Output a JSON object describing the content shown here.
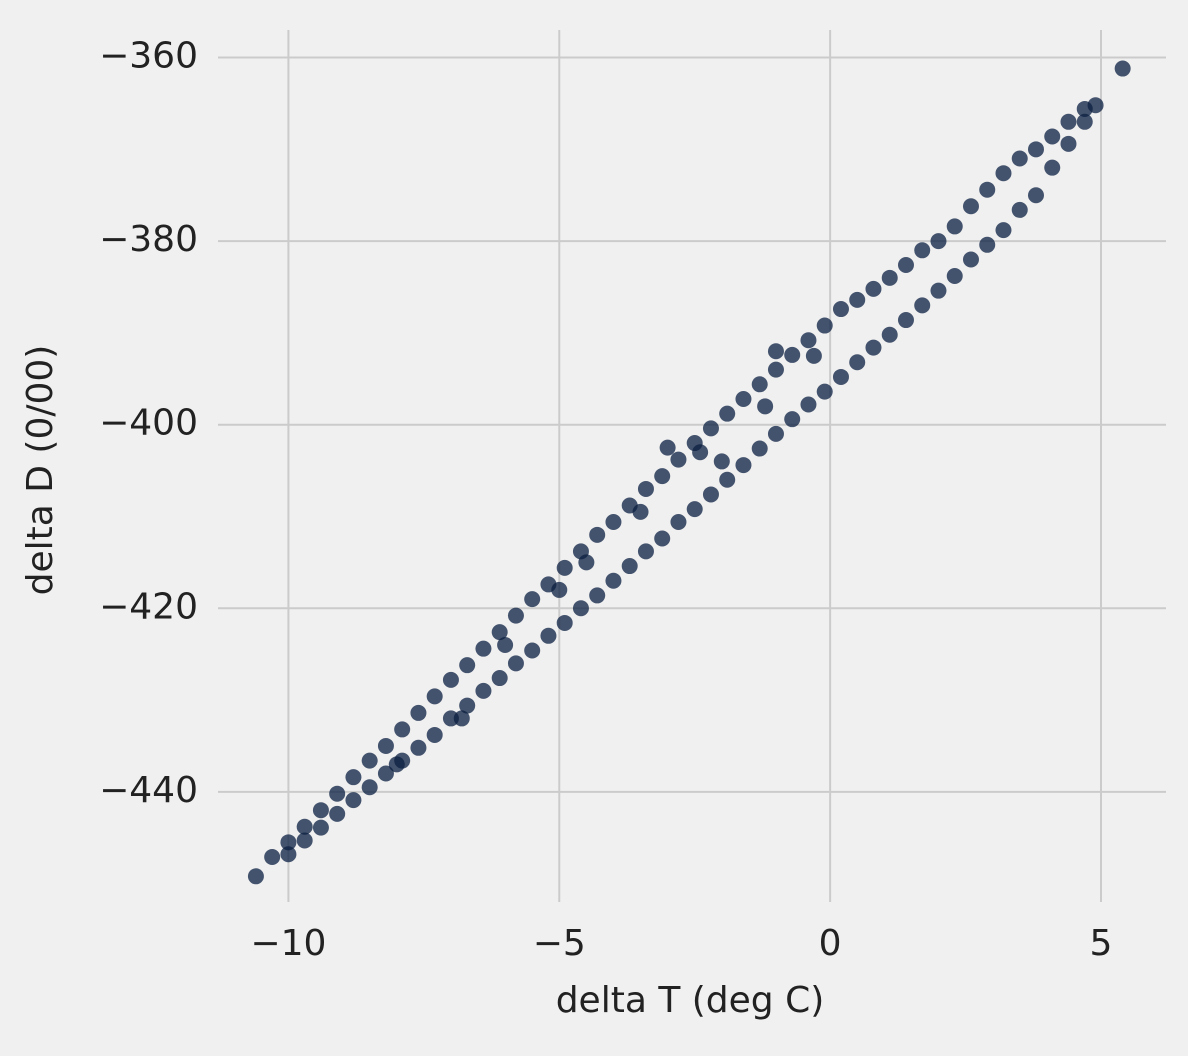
{
  "chart_data": {
    "type": "scatter",
    "x_label": "delta T (deg C)",
    "y_label": "delta D (0/00)",
    "color": "#0b1f41",
    "grid": true,
    "xlim": [
      -11.3,
      6.2
    ],
    "ylim": [
      -452,
      -357
    ],
    "xticks": [
      {
        "value": -10,
        "label": "−10"
      },
      {
        "value": -5,
        "label": "−5"
      },
      0,
      5
    ],
    "yticks": [
      {
        "value": -440,
        "label": "−440"
      },
      {
        "value": -420,
        "label": "−420"
      },
      {
        "value": -400,
        "label": "−400"
      },
      {
        "value": -380,
        "label": "−380"
      },
      {
        "value": -360,
        "label": "−360"
      }
    ],
    "x": [
      -10.6,
      -10.3,
      -10.0,
      -10.0,
      -9.7,
      -9.7,
      -9.4,
      -9.4,
      -9.1,
      -9.1,
      -8.8,
      -8.8,
      -8.5,
      -8.5,
      -8.2,
      -8.2,
      -7.9,
      -7.9,
      -7.6,
      -7.6,
      -7.3,
      -7.3,
      -7.0,
      -7.0,
      -6.7,
      -6.7,
      -6.4,
      -6.4,
      -6.1,
      -6.1,
      -5.8,
      -5.8,
      -5.5,
      -5.5,
      -5.2,
      -5.2,
      -4.9,
      -4.9,
      -4.6,
      -4.6,
      -4.3,
      -4.3,
      -4.0,
      -4.0,
      -3.7,
      -3.7,
      -3.4,
      -3.4,
      -3.1,
      -3.1,
      -2.8,
      -2.8,
      -2.5,
      -2.5,
      -2.2,
      -2.2,
      -1.9,
      -1.9,
      -1.6,
      -1.6,
      -1.3,
      -1.3,
      -1.0,
      -1.0,
      -0.7,
      -0.7,
      -0.4,
      -0.4,
      -0.1,
      -0.1,
      0.2,
      0.2,
      0.5,
      0.5,
      0.8,
      0.8,
      1.1,
      1.1,
      1.4,
      1.4,
      1.7,
      1.7,
      2.0,
      2.0,
      2.3,
      2.3,
      2.6,
      2.6,
      2.9,
      2.9,
      3.2,
      3.2,
      3.5,
      3.5,
      3.8,
      3.8,
      4.1,
      4.1,
      4.4,
      4.4,
      4.7,
      4.7,
      4.9,
      5.4,
      -1.0,
      -6.8,
      -3.0,
      -5.0,
      -2.0,
      -8.0,
      -6.0,
      -4.5,
      -3.5,
      -2.4,
      -1.2,
      -0.3
    ],
    "values": [
      -449.2,
      -447.1,
      -445.5,
      -446.8,
      -443.8,
      -445.3,
      -442.0,
      -443.9,
      -440.2,
      -442.4,
      -438.4,
      -440.9,
      -436.6,
      -439.5,
      -435.0,
      -438.0,
      -433.2,
      -436.6,
      -431.4,
      -435.2,
      -429.6,
      -433.8,
      -427.8,
      -432.0,
      -426.2,
      -430.6,
      -424.4,
      -429.0,
      -422.6,
      -427.6,
      -420.8,
      -426.0,
      -419.0,
      -424.6,
      -417.4,
      -423.0,
      -415.6,
      -421.6,
      -413.8,
      -420.0,
      -412.0,
      -418.6,
      -410.6,
      -417.0,
      -408.8,
      -415.4,
      -407.0,
      -413.8,
      -405.6,
      -412.4,
      -403.8,
      -410.6,
      -402.0,
      -409.2,
      -400.4,
      -407.6,
      -398.8,
      -406.0,
      -397.2,
      -404.4,
      -395.6,
      -402.6,
      -394.0,
      -401.0,
      -392.4,
      -399.4,
      -390.8,
      -397.8,
      -389.2,
      -396.4,
      -387.4,
      -394.8,
      -386.4,
      -393.2,
      -385.2,
      -391.6,
      -384.0,
      -390.2,
      -382.6,
      -388.6,
      -381.0,
      -387.0,
      -380.0,
      -385.4,
      -378.4,
      -383.8,
      -376.2,
      -382.0,
      -374.4,
      -380.4,
      -372.6,
      -378.8,
      -371.0,
      -376.6,
      -370.0,
      -375.0,
      -368.6,
      -372.0,
      -367.0,
      -369.4,
      -365.6,
      -367.0,
      -365.2,
      -361.2,
      -392.0,
      -432.0,
      -402.5,
      -418.0,
      -404.0,
      -437.0,
      -424.0,
      -415.0,
      -409.5,
      -403.0,
      -398.0,
      -392.5
    ]
  }
}
